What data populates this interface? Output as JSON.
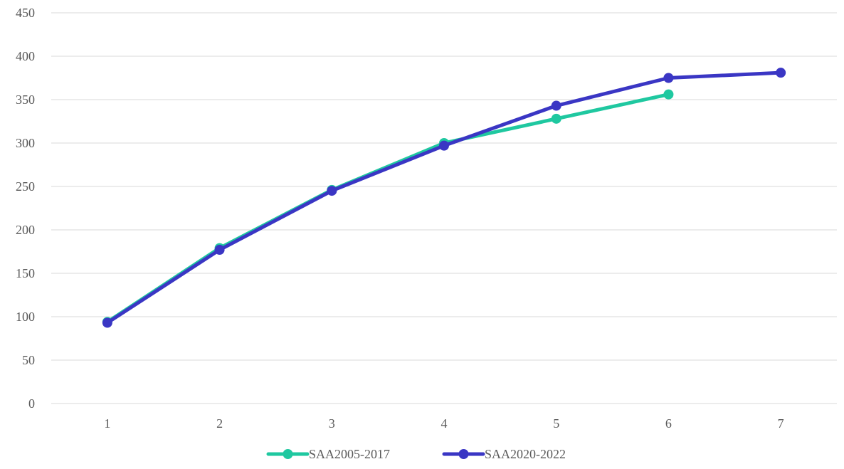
{
  "chart_data": {
    "type": "line",
    "title": "",
    "xlabel": "",
    "ylabel": "",
    "categories": [
      "1",
      "2",
      "3",
      "4",
      "5",
      "6",
      "7"
    ],
    "x": [
      1,
      2,
      3,
      4,
      5,
      6,
      7
    ],
    "ylim": [
      0,
      450
    ],
    "y_ticks": [
      0,
      50,
      100,
      150,
      200,
      250,
      300,
      350,
      400,
      450
    ],
    "grid": true,
    "legend_position": "bottom",
    "series": [
      {
        "name": "SAA2005-2017",
        "color": "#1fc8a0",
        "values": [
          94,
          179,
          246,
          300,
          328,
          356,
          null
        ]
      },
      {
        "name": "SAA2020-2022",
        "color": "#3a36c4",
        "values": [
          93,
          177,
          245,
          297,
          343,
          375,
          381
        ]
      }
    ]
  }
}
